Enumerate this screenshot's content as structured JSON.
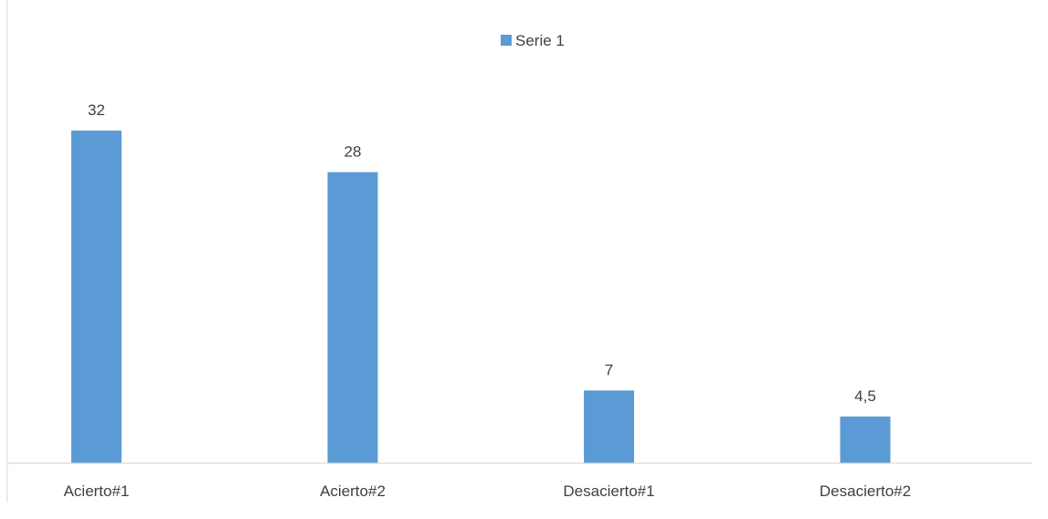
{
  "chart_data": {
    "type": "bar",
    "categories": [
      "Acierto#1",
      "Acierto#2",
      "Desacierto#1",
      "Desacierto#2"
    ],
    "series": [
      {
        "name": "Serie 1",
        "values": [
          32,
          28,
          7,
          4.5
        ],
        "value_labels": [
          "32",
          "28",
          "7",
          "4,5"
        ],
        "color": "#5B9BD5"
      }
    ],
    "title": "",
    "xlabel": "",
    "ylabel": "",
    "ylim": [
      0,
      37
    ],
    "grid": false,
    "legend_position": "top-center",
    "axis_color": "#D9D9D9",
    "text_color": "#404040"
  }
}
